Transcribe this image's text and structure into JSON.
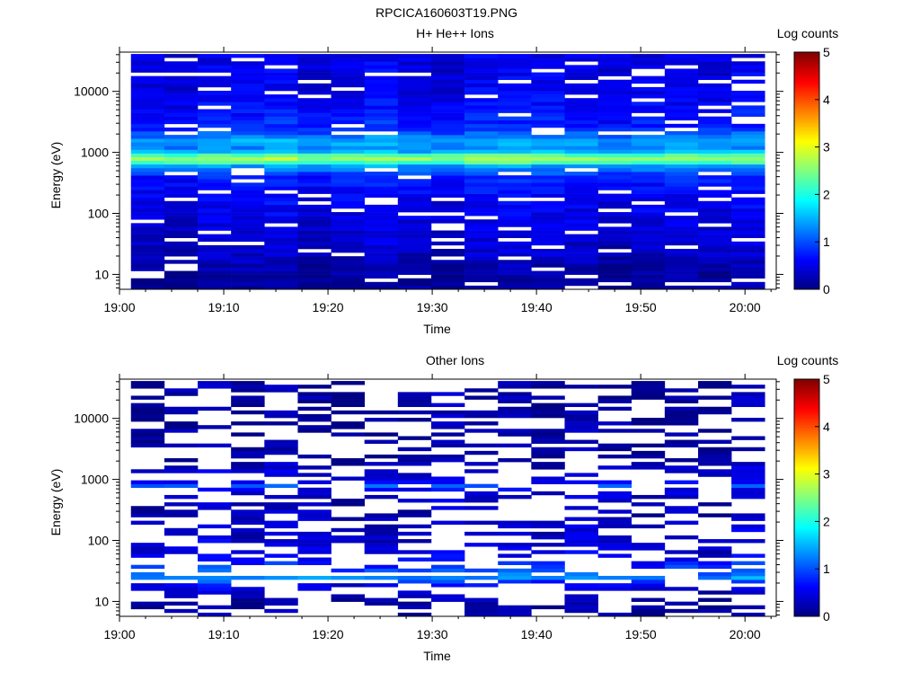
{
  "figure": {
    "title": "RPCICA160603T19.PNG"
  },
  "chart_data": [
    {
      "type": "heatmap",
      "title": "H+ He++ Ions",
      "xlabel": "Time",
      "ylabel": "Energy (eV)",
      "x_ticks": [
        "19:00",
        "19:10",
        "19:20",
        "19:30",
        "19:40",
        "19:50",
        "20:00"
      ],
      "x_tick_minutes": [
        0,
        10,
        20,
        30,
        40,
        50,
        60
      ],
      "xlim_minutes": [
        0,
        63
      ],
      "data_x_range_minutes": [
        1.1,
        61.9
      ],
      "ylim": [
        5.7,
        44000
      ],
      "yscale": "log",
      "y_ticks": [
        10,
        100,
        1000,
        10000
      ],
      "y_tick_labels": [
        "10",
        "100",
        "1000",
        "10000"
      ],
      "colorbar": {
        "label": "Log counts",
        "min": 0,
        "max": 5,
        "ticks": [
          "0",
          "1",
          "2",
          "3",
          "4",
          "5"
        ]
      },
      "time_bins": 19,
      "energy_bins": 64,
      "energy_range_ev": [
        5.7,
        41000
      ],
      "value_profile": [
        {
          "energy_ev": 10,
          "log_counts": 0.15
        },
        {
          "energy_ev": 20,
          "log_counts": 0.35
        },
        {
          "energy_ev": 50,
          "log_counts": 0.45
        },
        {
          "energy_ev": 100,
          "log_counts": 0.55
        },
        {
          "energy_ev": 200,
          "log_counts": 0.6
        },
        {
          "energy_ev": 400,
          "log_counts": 0.8
        },
        {
          "energy_ev": 600,
          "log_counts": 1.4
        },
        {
          "energy_ev": 750,
          "log_counts": 2.8
        },
        {
          "energy_ev": 900,
          "log_counts": 2.3
        },
        {
          "energy_ev": 1100,
          "log_counts": 1.2
        },
        {
          "energy_ev": 1500,
          "log_counts": 1.5
        },
        {
          "energy_ev": 2500,
          "log_counts": 0.8
        },
        {
          "energy_ev": 10000,
          "log_counts": 0.55
        },
        {
          "energy_ev": 40000,
          "log_counts": 0.5
        }
      ],
      "empty_fraction": 0.1
    },
    {
      "type": "heatmap",
      "title": "Other Ions",
      "xlabel": "Time",
      "ylabel": "Energy (eV)",
      "x_ticks": [
        "19:00",
        "19:10",
        "19:20",
        "19:30",
        "19:40",
        "19:50",
        "20:00"
      ],
      "x_tick_minutes": [
        0,
        10,
        20,
        30,
        40,
        50,
        60
      ],
      "xlim_minutes": [
        0,
        63
      ],
      "data_x_range_minutes": [
        1.1,
        61.9
      ],
      "ylim": [
        5.7,
        44000
      ],
      "yscale": "log",
      "y_ticks": [
        10,
        100,
        1000,
        10000
      ],
      "y_tick_labels": [
        "10",
        "100",
        "1000",
        "10000"
      ],
      "colorbar": {
        "label": "Log counts",
        "min": 0,
        "max": 5,
        "ticks": [
          "0",
          "1",
          "2",
          "3",
          "4",
          "5"
        ]
      },
      "time_bins": 19,
      "energy_bins": 64,
      "energy_range_ev": [
        5.7,
        41000
      ],
      "value_profile": [
        {
          "energy_ev": 10,
          "log_counts": 0.2
        },
        {
          "energy_ev": 18,
          "log_counts": 0.45
        },
        {
          "energy_ev": 25,
          "log_counts": 1.35
        },
        {
          "energy_ev": 35,
          "log_counts": 0.9
        },
        {
          "energy_ev": 60,
          "log_counts": 0.45
        },
        {
          "energy_ev": 150,
          "log_counts": 0.35
        },
        {
          "energy_ev": 400,
          "log_counts": 0.25
        },
        {
          "energy_ev": 700,
          "log_counts": 0.5
        },
        {
          "energy_ev": 800,
          "log_counts": 1.2
        },
        {
          "energy_ev": 900,
          "log_counts": 0.6
        },
        {
          "energy_ev": 2000,
          "log_counts": 0.2
        },
        {
          "energy_ev": 40000,
          "log_counts": 0.15
        }
      ],
      "empty_fraction": 0.55
    }
  ]
}
